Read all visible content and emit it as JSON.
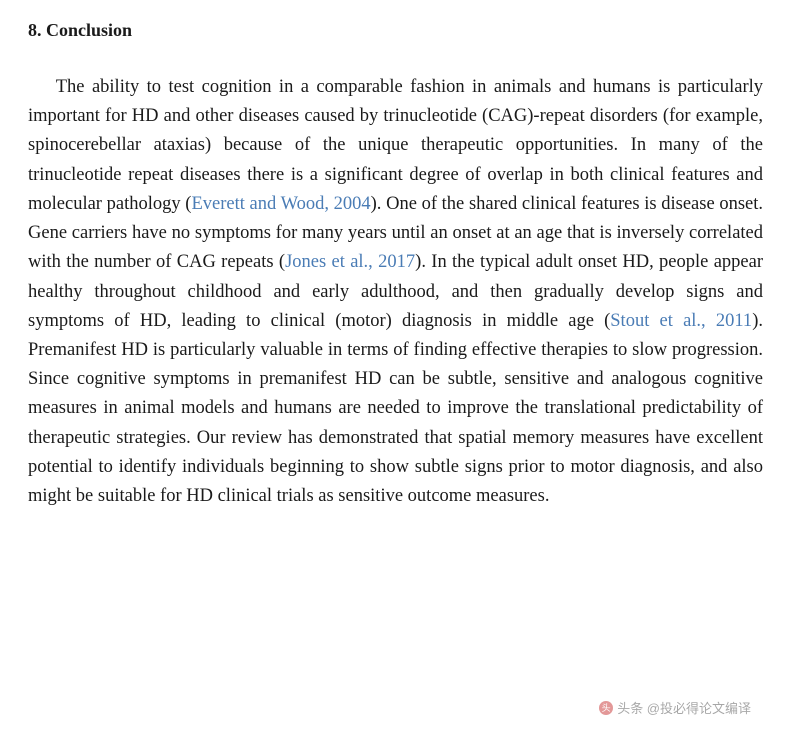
{
  "heading": {
    "number": "8.",
    "title": "Conclusion",
    "font_weight": 700,
    "font_size_pt": 14
  },
  "body": {
    "font_size_pt": 14,
    "line_height": 1.58,
    "text_align": "justify",
    "text_color": "#1a1a1a",
    "citation_color": "#4a7cb5",
    "background_color": "#ffffff",
    "segments": [
      {
        "t": "text",
        "v": "The ability to test cognition in a comparable fashion in animals and humans is particularly important for HD and other diseases caused by trinucleotide (CAG)-repeat disorders (for example, spinocerebellar ataxias) because of the unique therapeutic opportunities. In many of the trinucleotide repeat diseases there is a significant degree of overlap in both clinical features and molecular pathology ("
      },
      {
        "t": "cite",
        "v": "Everett and Wood, 2004"
      },
      {
        "t": "text",
        "v": "). One of the shared clinical features is disease onset. Gene carriers have no symptoms for many years until an onset at an age that is in­versely correlated with the number of CAG repeats ("
      },
      {
        "t": "cite",
        "v": "Jones et al., 2017"
      },
      {
        "t": "text",
        "v": "). In the typical adult onset HD, people appear healthy throughout childhood and early adulthood, and then gradually develop signs and symptoms of HD, leading to clinical (motor) diagnosis in middle age ("
      },
      {
        "t": "cite",
        "v": "Stout et al., 2011"
      },
      {
        "t": "text",
        "v": "). Premanifest HD is particularly valuable in terms of finding effective therapies to slow progression. Since cognitive symp­toms in premanifest HD can be subtle, sensitive and analogous cognitive measures in animal models and humans are needed to improve the translational predictability of therapeutic strategies. Our review has demonstrated that spatial memory measures have excellent potential to identify individuals beginning to show subtle signs prior to motor di­agnosis, and also might be suitable for HD clinical trials as sensitive outcome measures."
      }
    ]
  },
  "watermark": {
    "icon_label": "头",
    "text": "头条 @投必得论文编译",
    "color": "rgba(0,0,0,0.35)",
    "icon_bg": "rgba(200,50,50,0.5)"
  }
}
